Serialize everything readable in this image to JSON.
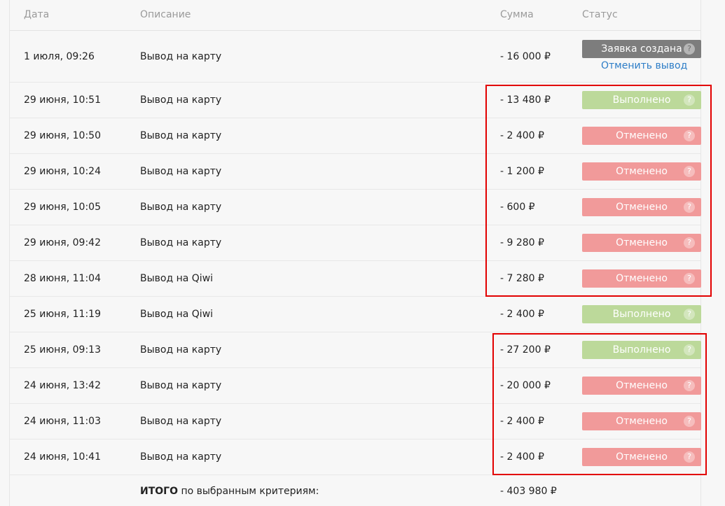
{
  "header": {
    "date": "Дата",
    "description": "Описание",
    "sum": "Сумма",
    "status": "Статус"
  },
  "rows": [
    {
      "date": "1 июля, 09:26",
      "description": "Вывод на карту",
      "sum": "- 16 000 ₽",
      "status": "Заявка создана",
      "status_kind": "created",
      "action": "Отменить вывод"
    },
    {
      "date": "29 июня, 10:51",
      "description": "Вывод на карту",
      "sum": "- 13 480 ₽",
      "status": "Выполнено",
      "status_kind": "done"
    },
    {
      "date": "29 июня, 10:50",
      "description": "Вывод на карту",
      "sum": "- 2 400 ₽",
      "status": "Отменено",
      "status_kind": "cancel"
    },
    {
      "date": "29 июня, 10:24",
      "description": "Вывод на карту",
      "sum": "- 1 200 ₽",
      "status": "Отменено",
      "status_kind": "cancel"
    },
    {
      "date": "29 июня, 10:05",
      "description": "Вывод на карту",
      "sum": "- 600 ₽",
      "status": "Отменено",
      "status_kind": "cancel"
    },
    {
      "date": "29 июня, 09:42",
      "description": "Вывод на карту",
      "sum": "- 9 280 ₽",
      "status": "Отменено",
      "status_kind": "cancel"
    },
    {
      "date": "28 июня, 11:04",
      "description": "Вывод на Qiwi",
      "sum": "- 7 280 ₽",
      "status": "Отменено",
      "status_kind": "cancel"
    },
    {
      "date": "25 июня, 11:19",
      "description": "Вывод на Qiwi",
      "sum": "- 2 400 ₽",
      "status": "Выполнено",
      "status_kind": "done"
    },
    {
      "date": "25 июня, 09:13",
      "description": "Вывод на карту",
      "sum": "- 27 200 ₽",
      "status": "Выполнено",
      "status_kind": "done"
    },
    {
      "date": "24 июня, 13:42",
      "description": "Вывод на карту",
      "sum": "- 20 000 ₽",
      "status": "Отменено",
      "status_kind": "cancel"
    },
    {
      "date": "24 июня, 11:03",
      "description": "Вывод на карту",
      "sum": "- 2 400 ₽",
      "status": "Отменено",
      "status_kind": "cancel"
    },
    {
      "date": "24 июня, 10:41",
      "description": "Вывод на карту",
      "sum": "- 2 400 ₽",
      "status": "Отменено",
      "status_kind": "cancel"
    }
  ],
  "status_help": "?",
  "total": {
    "label_bold": "ИТОГО",
    "label_rest": " по выбранным критериям:",
    "sum": "- 403 980 ₽"
  },
  "colors": {
    "created": "#7d7d7d",
    "done": "#bcd99a",
    "cancel": "#f19a9a",
    "highlight": "#e20000",
    "link": "#2d7dc7"
  }
}
